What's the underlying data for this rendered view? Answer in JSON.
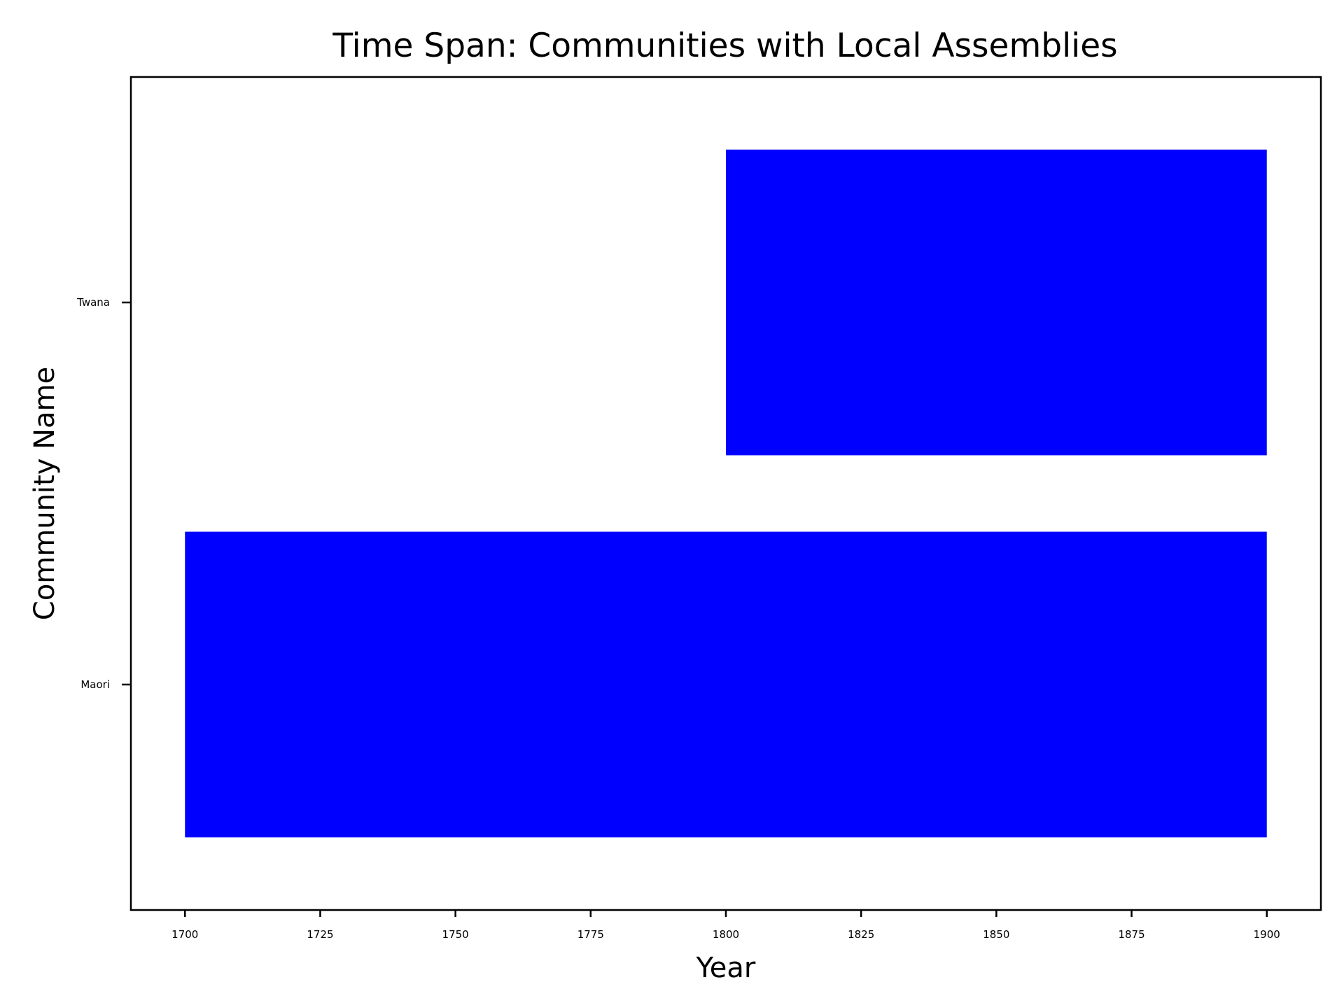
{
  "chart_data": {
    "type": "bar",
    "orientation": "horizontal",
    "title": "Time Span: Communities with Local Assemblies",
    "xlabel": "Year",
    "ylabel": "Community Name",
    "categories": [
      "Maori",
      "Twana"
    ],
    "series": [
      {
        "values": [
          {
            "category": "Maori",
            "start": 1700,
            "end": 1900
          },
          {
            "category": "Twana",
            "start": 1800,
            "end": 1900
          }
        ]
      }
    ],
    "xlim": [
      1690,
      1910
    ],
    "x_ticks": [
      1700,
      1725,
      1750,
      1775,
      1800,
      1825,
      1850,
      1875,
      1900
    ],
    "bar_color": "#0000ff",
    "grid": false,
    "legend": "none"
  }
}
